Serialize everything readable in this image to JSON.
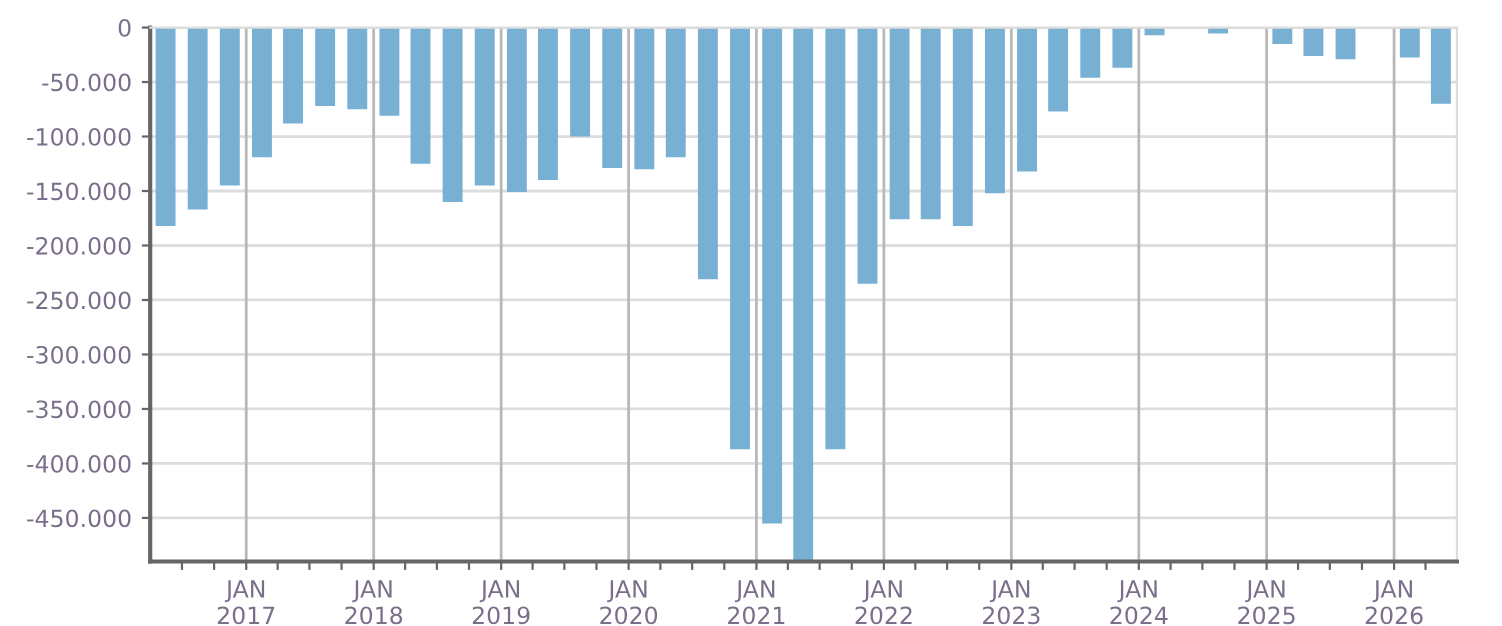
{
  "chart_data": {
    "type": "bar",
    "color": "#78b0d4",
    "x": [
      "2016-05-15",
      "2016-08-15",
      "2016-11-15",
      "2017-02-15",
      "2017-05-15",
      "2017-08-15",
      "2017-11-15",
      "2018-02-15",
      "2018-05-15",
      "2018-08-15",
      "2018-11-15",
      "2019-02-15",
      "2019-05-15",
      "2019-08-15",
      "2019-11-15",
      "2020-02-15",
      "2020-05-15",
      "2020-08-15",
      "2020-11-15",
      "2021-02-15",
      "2021-05-15",
      "2021-08-15",
      "2021-11-15",
      "2022-02-15",
      "2022-05-15",
      "2022-08-15",
      "2022-11-15",
      "2023-02-15",
      "2023-05-15",
      "2023-08-15",
      "2023-11-15",
      "2024-02-15",
      "2024-05-15",
      "2024-08-15",
      "2024-11-15",
      "2025-02-15",
      "2025-05-15",
      "2025-08-15",
      "2025-11-15",
      "2026-02-15",
      "2026-05-15"
    ],
    "values": [
      -182000,
      -167000,
      -145000,
      -119000,
      -88000,
      -72000,
      -75000,
      -81000,
      -125000,
      -160000,
      -145000,
      -151000,
      -140000,
      -100000,
      -129000,
      -130000,
      -119000,
      -231000,
      -387000,
      -455000,
      -490000,
      -387000,
      -235000,
      -176000,
      -176000,
      -182000,
      -152000,
      -132000,
      -77000,
      -46000,
      -37000,
      -7000,
      0,
      -5500,
      0,
      -15000,
      -26000,
      -29000,
      0,
      -27500,
      -70000
    ],
    "xlim": [
      "2016-04-01",
      "2026-06-30"
    ],
    "xticks": [
      {
        "value": "2016-07-01",
        "label": null
      },
      {
        "value": "2016-10-01",
        "label": null
      },
      {
        "value": "2017-01-01",
        "label": "JAN\n2017"
      },
      {
        "value": "2017-04-01",
        "label": null
      },
      {
        "value": "2017-07-01",
        "label": null
      },
      {
        "value": "2017-10-01",
        "label": null
      },
      {
        "value": "2018-01-01",
        "label": "JAN\n2018"
      },
      {
        "value": "2018-04-01",
        "label": null
      },
      {
        "value": "2018-07-01",
        "label": null
      },
      {
        "value": "2018-10-01",
        "label": null
      },
      {
        "value": "2019-01-01",
        "label": "JAN\n2019"
      },
      {
        "value": "2019-04-01",
        "label": null
      },
      {
        "value": "2019-07-01",
        "label": null
      },
      {
        "value": "2019-10-01",
        "label": null
      },
      {
        "value": "2020-01-01",
        "label": "JAN\n2020"
      },
      {
        "value": "2020-04-01",
        "label": null
      },
      {
        "value": "2020-07-01",
        "label": null
      },
      {
        "value": "2020-10-01",
        "label": null
      },
      {
        "value": "2021-01-01",
        "label": "JAN\n2021"
      },
      {
        "value": "2021-04-01",
        "label": null
      },
      {
        "value": "2021-07-01",
        "label": null
      },
      {
        "value": "2021-10-01",
        "label": null
      },
      {
        "value": "2022-01-01",
        "label": "JAN\n2022"
      },
      {
        "value": "2022-04-01",
        "label": null
      },
      {
        "value": "2022-07-01",
        "label": null
      },
      {
        "value": "2022-10-01",
        "label": null
      },
      {
        "value": "2023-01-01",
        "label": "JAN\n2023"
      },
      {
        "value": "2023-04-01",
        "label": null
      },
      {
        "value": "2023-07-01",
        "label": null
      },
      {
        "value": "2023-10-01",
        "label": null
      },
      {
        "value": "2024-01-01",
        "label": "JAN\n2024"
      },
      {
        "value": "2024-04-01",
        "label": null
      },
      {
        "value": "2024-07-01",
        "label": null
      },
      {
        "value": "2024-10-01",
        "label": null
      },
      {
        "value": "2025-01-01",
        "label": "JAN\n2025"
      },
      {
        "value": "2025-04-01",
        "label": null
      },
      {
        "value": "2025-07-01",
        "label": null
      },
      {
        "value": "2025-10-01",
        "label": null
      },
      {
        "value": "2026-01-01",
        "label": "JAN\n2026"
      },
      {
        "value": "2026-04-01",
        "label": null
      }
    ],
    "ylim": [
      -490000,
      0
    ],
    "yticks": [
      0,
      {
        "value": -50000,
        "label": "-50.000"
      },
      {
        "value": -100000,
        "label": "-100.000"
      },
      {
        "value": -150000,
        "label": "-150.000"
      },
      {
        "value": -200000,
        "label": "-200.000"
      },
      {
        "value": -250000,
        "label": "-250.000"
      },
      {
        "value": -300000,
        "label": "-300.000"
      },
      {
        "value": -350000,
        "label": "-350.000"
      },
      {
        "value": -400000,
        "label": "-400.000"
      },
      {
        "value": -450000,
        "label": "-450.000"
      }
    ],
    "grid": true
  }
}
